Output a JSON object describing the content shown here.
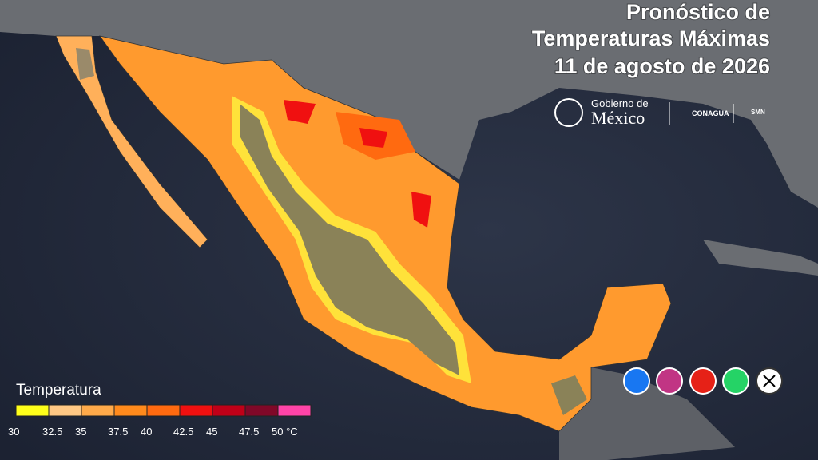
{
  "header": {
    "title_lines": [
      "Pronóstico de",
      "Temperaturas Máximas",
      "11 de agosto de 2026"
    ]
  },
  "logos": {
    "gobierno_top": "Gobierno de",
    "gobierno_main": "México",
    "conagua": "CONAGUA",
    "smn": "SMN"
  },
  "legend": {
    "title": "Temperatura",
    "ticks": [
      30,
      32.5,
      35,
      37.5,
      40,
      42.5,
      45,
      47.5,
      {
        "value": 50,
        "label": "50 °C"
      }
    ],
    "colors": [
      "#ffff1a",
      "#ffc884",
      "#ffaa4a",
      "#ff8a1c",
      "#ff6a10",
      "#f01010",
      "#c00018",
      "#800828",
      "#ff44a8"
    ]
  }
}
